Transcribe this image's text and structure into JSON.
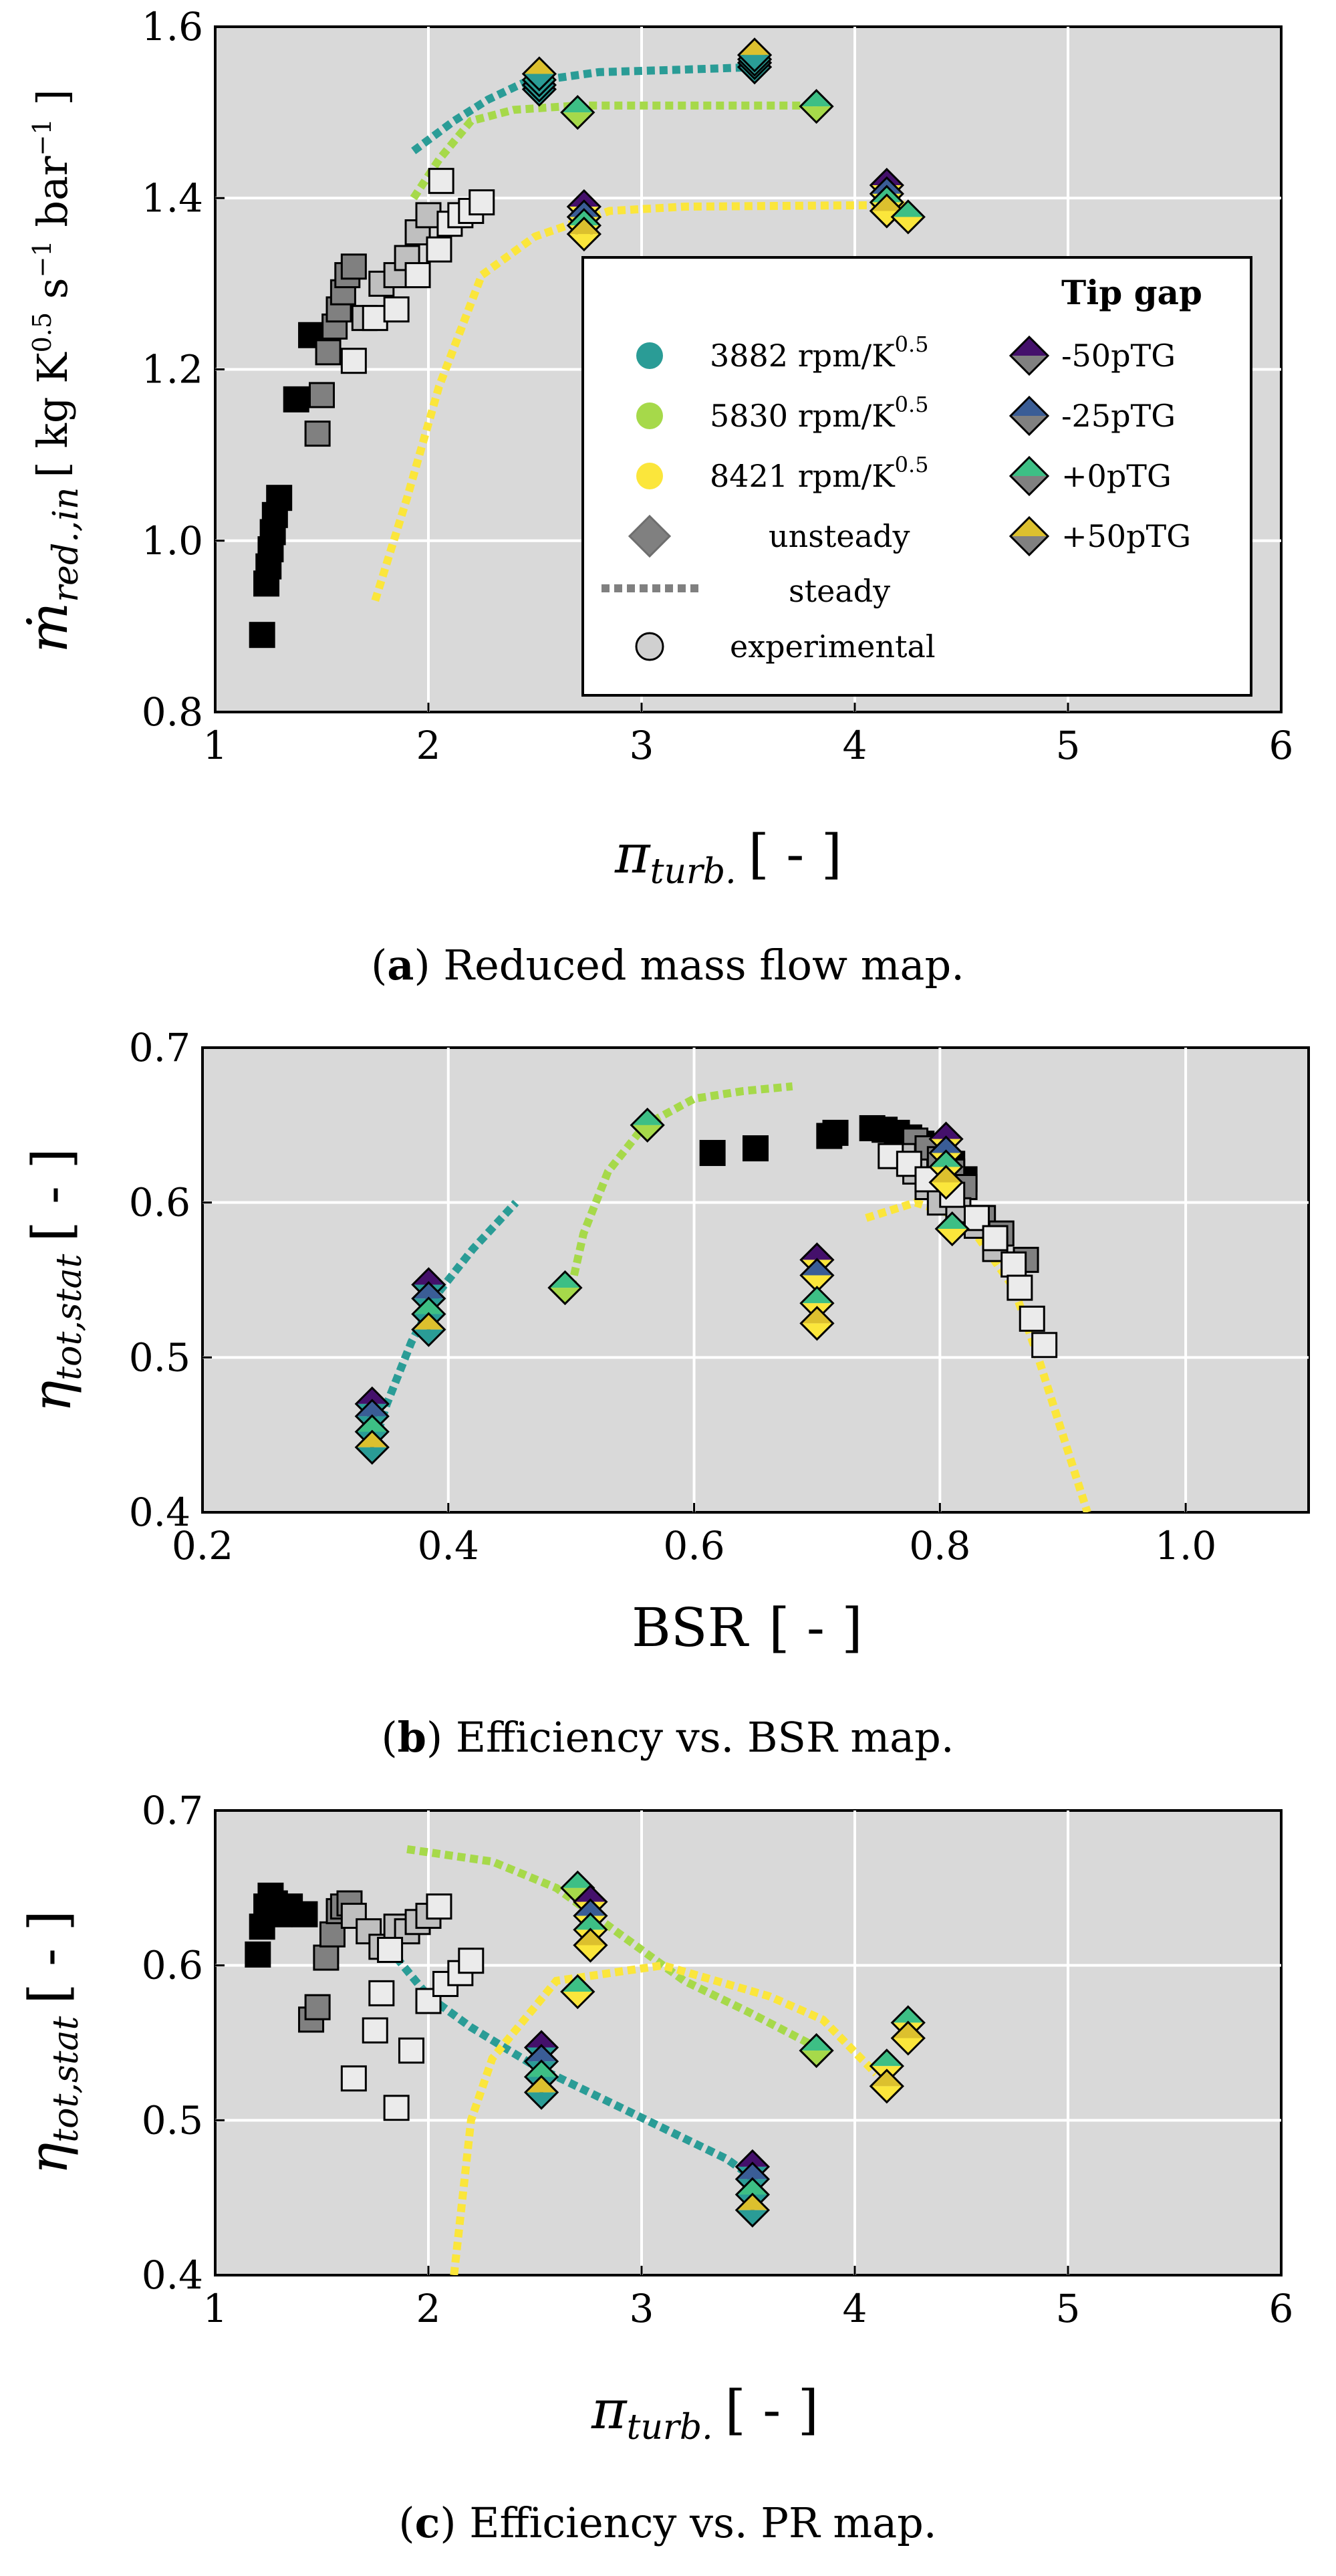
{
  "colors": {
    "bg": "#d9d9d9",
    "speed_3882": "#2a9c96",
    "speed_5830": "#a6d94a",
    "speed_8421": "#fbe63b",
    "tg_m50": "#44106b",
    "tg_m25": "#3a5d96",
    "tg_0": "#3dbf85",
    "tg_p50": "#dcc02e",
    "exp_black": "#000000",
    "exp_dark": "#808080",
    "exp_mid": "#bfbfbf",
    "exp_light": "#ebebeb"
  },
  "legend": {
    "title": "Tip gap",
    "speeds": [
      "3882 rpm/K^0.5",
      "5830 rpm/K^0.5",
      "8421 rpm/K^0.5"
    ],
    "gaps": [
      "-50pTG",
      "-25pTG",
      "+0pTG",
      "+50pTG"
    ],
    "kinds": [
      "unsteady",
      "steady",
      "experimental"
    ]
  },
  "chart_data": [
    {
      "id": "a",
      "type": "scatter",
      "caption_label": "a",
      "caption_text": "Reduced mass flow map.",
      "xlabel": "π_turb. [ - ]",
      "ylabel": "ṁ_red.,in [ kg K^0.5 s^-1 bar^-1 ]",
      "xlim": [
        1,
        6
      ],
      "ylim": [
        0.8,
        1.6
      ],
      "xticks": [
        "1",
        "2",
        "3",
        "4",
        "5",
        "6"
      ],
      "yticks": [
        "0.8",
        "1.0",
        "1.2",
        "1.4",
        "1.6"
      ],
      "steady": [
        {
          "speed": "3882",
          "points": [
            [
              1.93,
              1.455
            ],
            [
              2.12,
              1.49
            ],
            [
              2.28,
              1.515
            ],
            [
              2.45,
              1.535
            ],
            [
              2.8,
              1.547
            ],
            [
              3.2,
              1.55
            ],
            [
              3.55,
              1.553
            ]
          ]
        },
        {
          "speed": "5830",
          "points": [
            [
              1.93,
              1.4
            ],
            [
              2.05,
              1.445
            ],
            [
              2.2,
              1.49
            ],
            [
              2.4,
              1.503
            ],
            [
              2.7,
              1.508
            ],
            [
              3.3,
              1.508
            ],
            [
              3.85,
              1.508
            ]
          ]
        },
        {
          "speed": "8421",
          "points": [
            [
              1.75,
              0.93
            ],
            [
              1.9,
              1.05
            ],
            [
              2.05,
              1.18
            ],
            [
              2.25,
              1.31
            ],
            [
              2.5,
              1.355
            ],
            [
              2.85,
              1.385
            ],
            [
              3.2,
              1.39
            ],
            [
              4.25,
              1.392
            ]
          ]
        }
      ],
      "unsteady": [
        {
          "speed": "3882",
          "x": 2.52,
          "ys": [
            1.527,
            1.532,
            1.538,
            1.545
          ]
        },
        {
          "speed": "3882",
          "x": 3.53,
          "ys": [
            1.553,
            1.558,
            1.562,
            1.567
          ]
        },
        {
          "speed": "5830",
          "x": 2.7,
          "ys": [
            1.5
          ]
        },
        {
          "speed": "5830",
          "x": 3.82,
          "ys": [
            1.507
          ]
        },
        {
          "speed": "8421",
          "x": 2.73,
          "ys": [
            1.39,
            1.378,
            1.368,
            1.358
          ]
        },
        {
          "speed": "8421",
          "x": 4.15,
          "ys": [
            1.415,
            1.405,
            1.395,
            1.385
          ]
        },
        {
          "speed": "8421",
          "x": 4.25,
          "ys": [
            1.378
          ]
        }
      ],
      "experimental": [
        {
          "shade": "black",
          "points": [
            [
              1.22,
              0.89
            ],
            [
              1.24,
              0.95
            ],
            [
              1.25,
              0.97
            ],
            [
              1.26,
              0.99
            ],
            [
              1.27,
              1.01
            ],
            [
              1.28,
              1.03
            ],
            [
              1.3,
              1.05
            ],
            [
              1.38,
              1.165
            ],
            [
              1.45,
              1.24
            ]
          ]
        },
        {
          "shade": "dark",
          "points": [
            [
              1.48,
              1.125
            ],
            [
              1.5,
              1.17
            ],
            [
              1.53,
              1.22
            ],
            [
              1.56,
              1.25
            ],
            [
              1.58,
              1.27
            ],
            [
              1.6,
              1.29
            ],
            [
              1.62,
              1.31
            ],
            [
              1.65,
              1.32
            ]
          ]
        },
        {
          "shade": "mid",
          "points": [
            [
              1.7,
              1.26
            ],
            [
              1.78,
              1.3
            ],
            [
              1.85,
              1.31
            ],
            [
              1.9,
              1.33
            ],
            [
              1.95,
              1.36
            ],
            [
              2.0,
              1.38
            ]
          ]
        },
        {
          "shade": "light",
          "points": [
            [
              1.65,
              1.21
            ],
            [
              1.75,
              1.26
            ],
            [
              1.85,
              1.27
            ],
            [
              1.95,
              1.31
            ],
            [
              2.05,
              1.34
            ],
            [
              2.1,
              1.37
            ],
            [
              2.15,
              1.38
            ],
            [
              2.2,
              1.385
            ],
            [
              2.25,
              1.395
            ],
            [
              2.06,
              1.42
            ]
          ]
        }
      ]
    },
    {
      "id": "b",
      "type": "scatter",
      "caption_label": "b",
      "caption_text": "Efficiency vs. BSR map.",
      "xlabel": "BSR [ - ]",
      "ylabel": "η_tot,stat [ - ]",
      "xlim": [
        0.2,
        1.1
      ],
      "ylim": [
        0.4,
        0.7
      ],
      "xticks": [
        "0.2",
        "0.4",
        "0.6",
        "0.8",
        "1.0"
      ],
      "yticks": [
        "0.4",
        "0.5",
        "0.6",
        "0.7"
      ],
      "steady": [
        {
          "speed": "3882",
          "points": [
            [
              0.34,
              0.445
            ],
            [
              0.35,
              0.47
            ],
            [
              0.37,
              0.51
            ],
            [
              0.39,
              0.54
            ],
            [
              0.42,
              0.57
            ],
            [
              0.455,
              0.6
            ]
          ]
        },
        {
          "speed": "5830",
          "points": [
            [
              0.5,
              0.545
            ],
            [
              0.51,
              0.58
            ],
            [
              0.53,
              0.62
            ],
            [
              0.56,
              0.65
            ],
            [
              0.6,
              0.667
            ],
            [
              0.64,
              0.672
            ],
            [
              0.68,
              0.675
            ]
          ]
        },
        {
          "speed": "8421",
          "points": [
            [
              0.74,
              0.59
            ],
            [
              0.78,
              0.6
            ],
            [
              0.82,
              0.59
            ],
            [
              0.86,
              0.545
            ],
            [
              0.88,
              0.5
            ],
            [
              0.92,
              0.4
            ]
          ]
        }
      ],
      "unsteady": [
        {
          "speed": "3882",
          "x": 0.338,
          "ys": [
            0.47,
            0.462,
            0.452,
            0.442
          ]
        },
        {
          "speed": "3882",
          "x": 0.384,
          "ys": [
            0.547,
            0.538,
            0.528,
            0.518
          ]
        },
        {
          "speed": "5830",
          "x": 0.495,
          "ys": [
            0.545
          ]
        },
        {
          "speed": "5830",
          "x": 0.562,
          "ys": [
            0.65
          ]
        },
        {
          "speed": "8421",
          "x": 0.7,
          "ys": [
            0.563,
            0.553,
            0.535,
            0.522
          ]
        },
        {
          "speed": "8421",
          "x": 0.805,
          "ys": [
            0.641,
            0.632,
            0.623,
            0.613
          ]
        },
        {
          "speed": "8421",
          "x": 0.81,
          "ys": [
            0.583
          ]
        }
      ],
      "experimental": [
        {
          "shade": "black",
          "points": [
            [
              0.615,
              0.632
            ],
            [
              0.65,
              0.635
            ],
            [
              0.71,
              0.643
            ],
            [
              0.715,
              0.645
            ],
            [
              0.745,
              0.648
            ],
            [
              0.755,
              0.647
            ],
            [
              0.765,
              0.645
            ],
            [
              0.775,
              0.642
            ],
            [
              0.785,
              0.638
            ],
            [
              0.8,
              0.632
            ],
            [
              0.81,
              0.625
            ],
            [
              0.82,
              0.615
            ]
          ]
        },
        {
          "shade": "dark",
          "points": [
            [
              0.78,
              0.64
            ],
            [
              0.79,
              0.635
            ],
            [
              0.8,
              0.628
            ],
            [
              0.81,
              0.62
            ],
            [
              0.82,
              0.61
            ],
            [
              0.835,
              0.59
            ],
            [
              0.85,
              0.58
            ],
            [
              0.87,
              0.563
            ]
          ]
        },
        {
          "shade": "mid",
          "points": [
            [
              0.77,
              0.63
            ],
            [
              0.78,
              0.62
            ],
            [
              0.79,
              0.61
            ],
            [
              0.8,
              0.6
            ],
            [
              0.815,
              0.595
            ],
            [
              0.83,
              0.585
            ],
            [
              0.845,
              0.57
            ]
          ]
        },
        {
          "shade": "light",
          "points": [
            [
              0.76,
              0.63
            ],
            [
              0.775,
              0.625
            ],
            [
              0.79,
              0.615
            ],
            [
              0.81,
              0.605
            ],
            [
              0.83,
              0.59
            ],
            [
              0.845,
              0.577
            ],
            [
              0.86,
              0.56
            ],
            [
              0.865,
              0.545
            ],
            [
              0.875,
              0.525
            ],
            [
              0.885,
              0.508
            ]
          ]
        }
      ]
    },
    {
      "id": "c",
      "type": "scatter",
      "caption_label": "c",
      "caption_text": "Efficiency vs. PR map.",
      "xlabel": "π_turb. [ - ]",
      "ylabel": "η_tot,stat [ - ]",
      "xlim": [
        1,
        6
      ],
      "ylim": [
        0.4,
        0.7
      ],
      "xticks": [
        "1",
        "2",
        "3",
        "4",
        "5",
        "6"
      ],
      "yticks": [
        "0.4",
        "0.5",
        "0.6",
        "0.7"
      ],
      "steady": [
        {
          "speed": "3882",
          "points": [
            [
              1.85,
              0.605
            ],
            [
              2.0,
              0.58
            ],
            [
              2.2,
              0.56
            ],
            [
              2.5,
              0.535
            ],
            [
              2.8,
              0.515
            ],
            [
              3.1,
              0.495
            ],
            [
              3.4,
              0.475
            ],
            [
              3.55,
              0.46
            ]
          ]
        },
        {
          "speed": "5830",
          "points": [
            [
              1.9,
              0.675
            ],
            [
              2.3,
              0.667
            ],
            [
              2.6,
              0.65
            ],
            [
              2.9,
              0.62
            ],
            [
              3.2,
              0.59
            ],
            [
              3.5,
              0.57
            ],
            [
              3.85,
              0.545
            ]
          ]
        },
        {
          "speed": "8421",
          "points": [
            [
              2.12,
              0.4
            ],
            [
              2.2,
              0.5
            ],
            [
              2.3,
              0.54
            ],
            [
              2.6,
              0.59
            ],
            [
              3.1,
              0.6
            ],
            [
              3.6,
              0.58
            ],
            [
              3.85,
              0.565
            ],
            [
              4.1,
              0.53
            ]
          ]
        }
      ],
      "unsteady": [
        {
          "speed": "3882",
          "x": 2.53,
          "ys": [
            0.547,
            0.538,
            0.528,
            0.518
          ]
        },
        {
          "speed": "3882",
          "x": 3.52,
          "ys": [
            0.47,
            0.462,
            0.452,
            0.442
          ]
        },
        {
          "speed": "5830",
          "x": 2.7,
          "ys": [
            0.65
          ]
        },
        {
          "speed": "5830",
          "x": 3.82,
          "ys": [
            0.545
          ]
        },
        {
          "speed": "8421",
          "x": 2.76,
          "ys": [
            0.641,
            0.632,
            0.623,
            0.613
          ]
        },
        {
          "speed": "8421",
          "x": 2.7,
          "ys": [
            0.583
          ]
        },
        {
          "speed": "8421",
          "x": 4.25,
          "ys": [
            0.563,
            0.553
          ]
        },
        {
          "speed": "8421",
          "x": 4.15,
          "ys": [
            0.535,
            0.522
          ]
        }
      ],
      "experimental": [
        {
          "shade": "black",
          "points": [
            [
              1.2,
              0.607
            ],
            [
              1.22,
              0.625
            ],
            [
              1.24,
              0.638
            ],
            [
              1.26,
              0.645
            ],
            [
              1.28,
              0.64
            ],
            [
              1.3,
              0.633
            ],
            [
              1.35,
              0.638
            ],
            [
              1.42,
              0.633
            ]
          ]
        },
        {
          "shade": "dark",
          "points": [
            [
              1.45,
              0.565
            ],
            [
              1.48,
              0.573
            ],
            [
              1.52,
              0.605
            ],
            [
              1.55,
              0.62
            ],
            [
              1.58,
              0.635
            ],
            [
              1.6,
              0.638
            ],
            [
              1.63,
              0.64
            ]
          ]
        },
        {
          "shade": "mid",
          "points": [
            [
              1.65,
              0.632
            ],
            [
              1.72,
              0.622
            ],
            [
              1.78,
              0.612
            ],
            [
              1.85,
              0.625
            ],
            [
              1.9,
              0.622
            ],
            [
              1.95,
              0.628
            ],
            [
              2.0,
              0.632
            ]
          ]
        },
        {
          "shade": "light",
          "points": [
            [
              1.65,
              0.527
            ],
            [
              1.75,
              0.558
            ],
            [
              1.78,
              0.582
            ],
            [
              1.85,
              0.508
            ],
            [
              1.92,
              0.545
            ],
            [
              2.0,
              0.577
            ],
            [
              2.08,
              0.588
            ],
            [
              2.15,
              0.595
            ],
            [
              2.2,
              0.603
            ],
            [
              1.82,
              0.61
            ],
            [
              2.05,
              0.638
            ]
          ]
        }
      ]
    }
  ]
}
